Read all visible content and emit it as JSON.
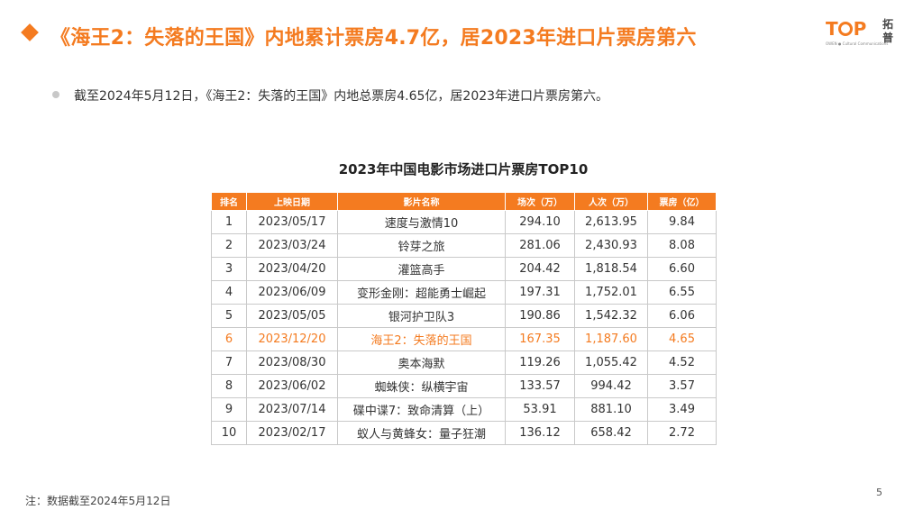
{
  "header": {
    "title": "《海王2：失落的王国》内地累计票房4.7亿，居2023年进口片票房第六",
    "logo_text": "TOP",
    "logo_tagline": "OWEN ● Cultural Communications",
    "logo_cn": "拓普"
  },
  "bullet": {
    "text": "截至2024年5月12日，《海王2：失落的王国》内地总票房4.65亿，居2023年进口片票房第六。"
  },
  "table": {
    "title": "2023年中国电影市场进口片票房TOP10",
    "headers": [
      "排名",
      "上映日期",
      "影片名称",
      "场次（万）",
      "人次（万）",
      "票房（亿）"
    ],
    "rows": [
      [
        "1",
        "2023/05/17",
        "速度与激情10",
        "294.10",
        "2,613.95",
        "9.84"
      ],
      [
        "2",
        "2023/03/24",
        "铃芽之旅",
        "281.06",
        "2,430.93",
        "8.08"
      ],
      [
        "3",
        "2023/04/20",
        "灌篮高手",
        "204.42",
        "1,818.54",
        "6.60"
      ],
      [
        "4",
        "2023/06/09",
        "变形金刚：超能勇士崛起",
        "197.31",
        "1,752.01",
        "6.55"
      ],
      [
        "5",
        "2023/05/05",
        "银河护卫队3",
        "190.86",
        "1,542.32",
        "6.06"
      ],
      [
        "6",
        "2023/12/20",
        "海王2：失落的王国",
        "167.35",
        "1,187.60",
        "4.65"
      ],
      [
        "7",
        "2023/08/30",
        "奥本海默",
        "119.26",
        "1,055.42",
        "4.52"
      ],
      [
        "8",
        "2023/06/02",
        "蜘蛛侠：纵横宇宙",
        "133.57",
        "994.42",
        "3.57"
      ],
      [
        "9",
        "2023/07/14",
        "碟中谍7：致命清算（上）",
        "53.91",
        "881.10",
        "3.49"
      ],
      [
        "10",
        "2023/02/17",
        "蚁人与黄蜂女：量子狂潮",
        "136.12",
        "658.42",
        "2.72"
      ]
    ],
    "highlight_row": 5
  },
  "footer": {
    "note": "注：数据截至2024年5月12日",
    "page_number": "5"
  },
  "colors": {
    "accent": "#F47B20",
    "bullet": "#C8C8C8",
    "grid": "#C9C9C9"
  }
}
